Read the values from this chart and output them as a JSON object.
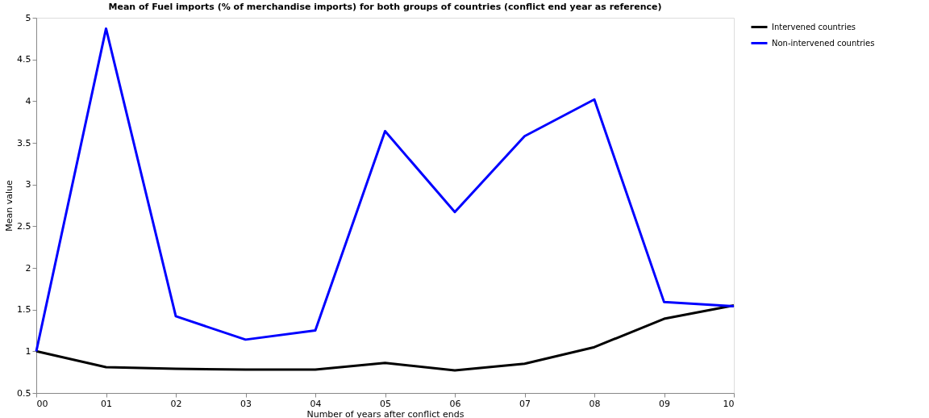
{
  "chart_data": {
    "type": "line",
    "title": "Mean of Fuel imports (% of merchandise imports) for both groups of countries (conflict end year as reference)",
    "xlabel": "Number of years after conflict ends",
    "ylabel": "Mean value",
    "categories": [
      "00",
      "01",
      "02",
      "03",
      "04",
      "05",
      "06",
      "07",
      "08",
      "09",
      "10"
    ],
    "series": [
      {
        "name": "Intervened countries",
        "color": "#000000",
        "values": [
          1.0,
          0.81,
          0.79,
          0.78,
          0.78,
          0.86,
          0.77,
          0.85,
          1.05,
          1.39,
          1.55
        ]
      },
      {
        "name": "Non-intervened countries",
        "color": "#0000ff",
        "values": [
          1.0,
          4.87,
          1.42,
          1.14,
          1.25,
          3.64,
          2.67,
          3.58,
          4.02,
          1.59,
          1.54
        ]
      }
    ],
    "ylim": [
      0.5,
      5
    ],
    "yticks": [
      0.5,
      1,
      1.5,
      2,
      2.5,
      3,
      3.5,
      4,
      4.5,
      5
    ],
    "grid": false,
    "legend": "top right",
    "marker": "none",
    "line_style": "solid"
  }
}
